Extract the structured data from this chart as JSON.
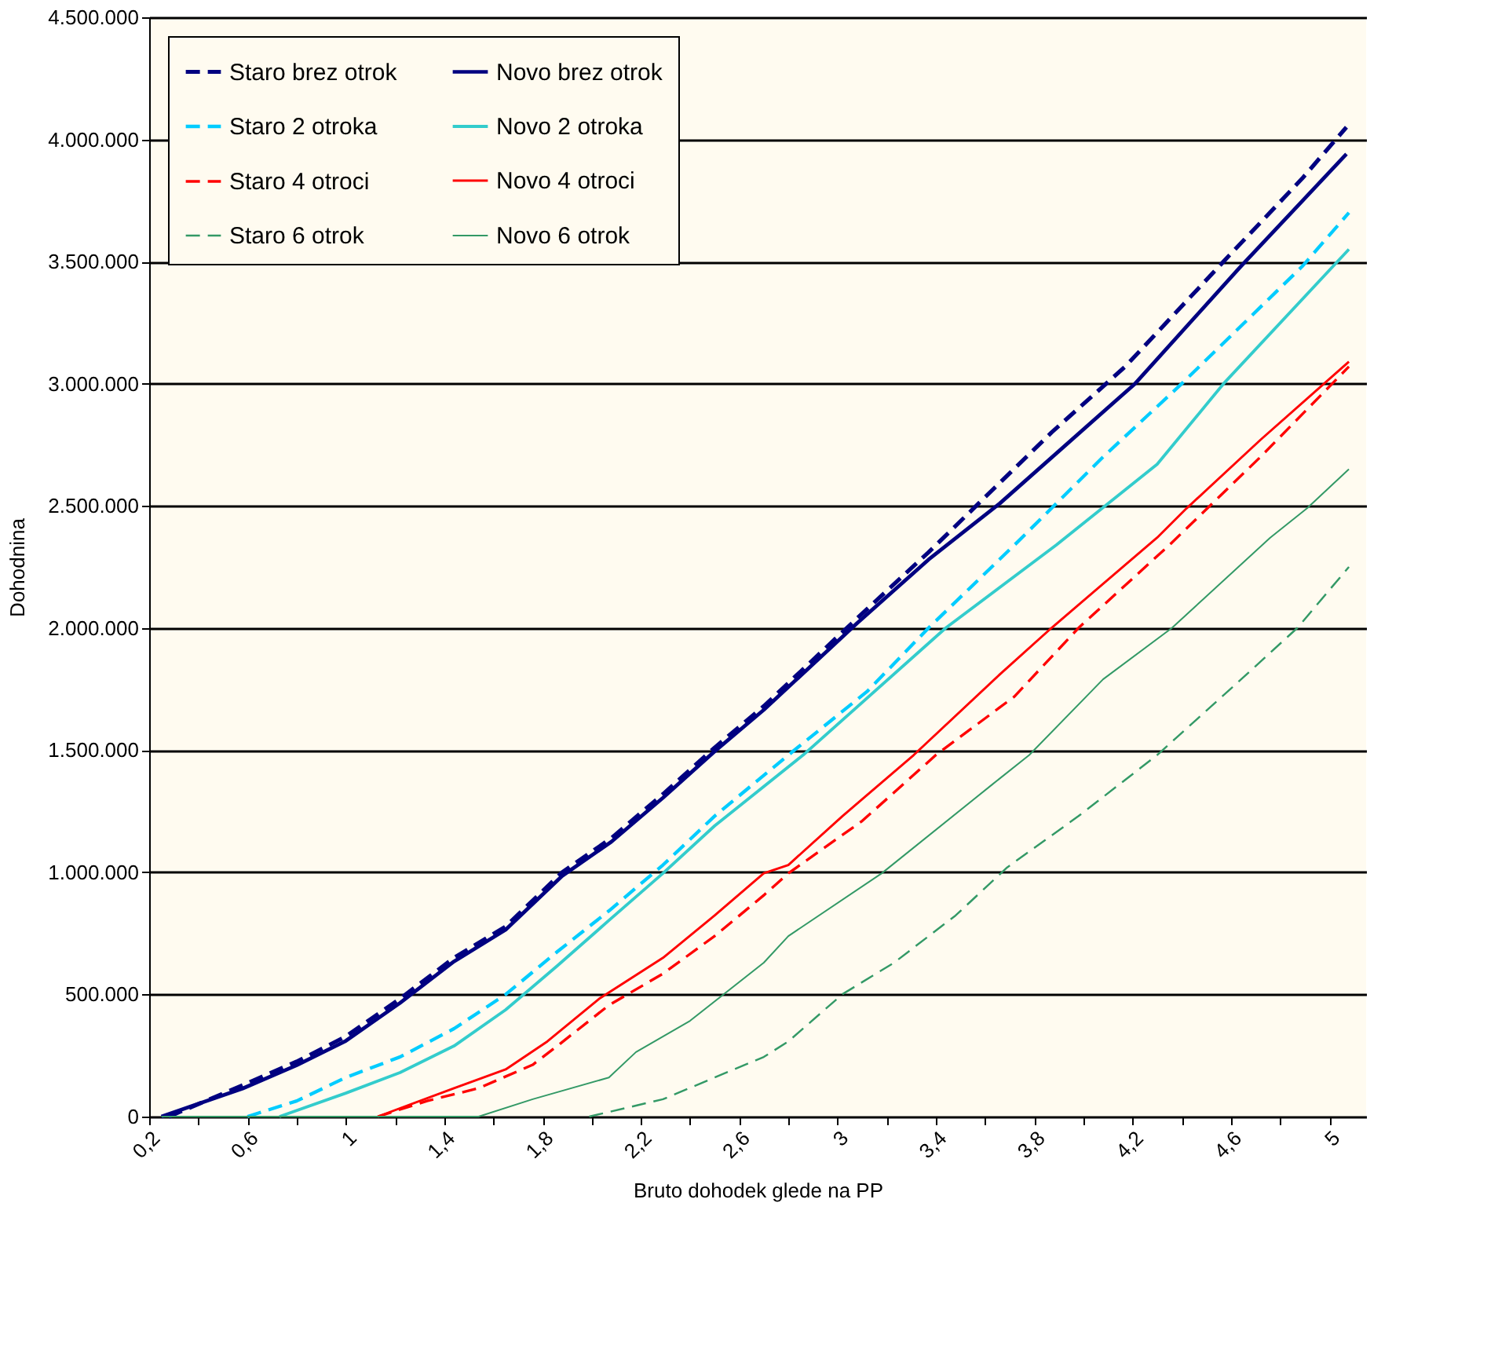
{
  "chart_data": {
    "type": "line",
    "xlabel": "Bruto dohodek glede na PP",
    "ylabel": "Dohodnina",
    "xlim": [
      0.2,
      5.15
    ],
    "ylim": [
      0,
      4500000
    ],
    "xticks": [
      {
        "value": 0.2,
        "label": "0,2"
      },
      {
        "value": 0.4,
        "label": null
      },
      {
        "value": 0.6,
        "label": "0,6"
      },
      {
        "value": 0.8,
        "label": null
      },
      {
        "value": 1,
        "label": "1"
      },
      {
        "value": 1.2,
        "label": null
      },
      {
        "value": 1.4,
        "label": "1,4"
      },
      {
        "value": 1.6,
        "label": null
      },
      {
        "value": 1.8,
        "label": "1,8"
      },
      {
        "value": 2.0,
        "label": null
      },
      {
        "value": 2.2,
        "label": "2,2"
      },
      {
        "value": 2.4,
        "label": null
      },
      {
        "value": 2.6,
        "label": "2,6"
      },
      {
        "value": 2.8,
        "label": null
      },
      {
        "value": 3,
        "label": "3"
      },
      {
        "value": 3.2,
        "label": null
      },
      {
        "value": 3.4,
        "label": "3,4"
      },
      {
        "value": 3.6,
        "label": null
      },
      {
        "value": 3.8,
        "label": "3,8"
      },
      {
        "value": 4.0,
        "label": null
      },
      {
        "value": 4.2,
        "label": "4,2"
      },
      {
        "value": 4.4,
        "label": null
      },
      {
        "value": 4.6,
        "label": "4,6"
      },
      {
        "value": 4.8,
        "label": null
      },
      {
        "value": 5,
        "label": "5"
      }
    ],
    "yticks": [
      0,
      {
        "value": 500000,
        "label": "500.000"
      },
      {
        "value": 1000000,
        "label": "1.000.000"
      },
      {
        "value": 1500000,
        "label": "1.500.000"
      },
      {
        "value": 2000000,
        "label": "2.000.000"
      },
      {
        "value": 2500000,
        "label": "2.500.000"
      },
      {
        "value": 3000000,
        "label": "3.000.000"
      },
      {
        "value": 3500000,
        "label": "3.500.000"
      },
      {
        "value": 4000000,
        "label": "4.000.000"
      },
      {
        "value": 4500000,
        "label": "4.500.000"
      }
    ],
    "grid": "y",
    "legend": "top left",
    "series": [
      {
        "name": "Staro brez otrok",
        "color": "#000080",
        "line_style": "dashed",
        "x": [
          0.28,
          0.58,
          0.8,
          1.0,
          1.22,
          1.44,
          1.65,
          1.88,
          2.08,
          2.29,
          2.5,
          2.7,
          3.08,
          3.37,
          3.87,
          4.17,
          4.57,
          4.89,
          5.07
        ],
        "values": [
          0,
          128000,
          225000,
          328000,
          482000,
          650000,
          778000,
          1000000,
          1140000,
          1320000,
          1510000,
          1680000,
          2040000,
          2310000,
          2800000,
          3070000,
          3500000,
          3840000,
          4050000
        ]
      },
      {
        "name": "Novo brez otrok",
        "color": "#000080",
        "line_style": "solid",
        "x": [
          0.25,
          0.58,
          0.8,
          1.0,
          1.22,
          1.44,
          1.65,
          1.88,
          2.08,
          2.29,
          2.5,
          2.7,
          3.08,
          3.37,
          3.66,
          4.21,
          4.64,
          5.07
        ],
        "values": [
          0,
          115000,
          210000,
          310000,
          465000,
          635000,
          765000,
          985000,
          1125000,
          1305000,
          1495000,
          1665000,
          2020000,
          2280000,
          2510000,
          3000000,
          3480000,
          3940000
        ]
      },
      {
        "name": "Staro 2 otroka",
        "color": "#00ccff",
        "line_style": "dashed",
        "x": [
          0.6,
          0.8,
          1.0,
          1.22,
          1.44,
          1.65,
          1.86,
          2.07,
          2.29,
          2.5,
          2.8,
          3.12,
          3.37,
          3.72,
          4.08,
          4.4,
          4.89,
          5.08
        ],
        "values": [
          0,
          64000,
          160000,
          244000,
          360000,
          500000,
          675000,
          842000,
          1030000,
          1230000,
          1480000,
          1740000,
          2000000,
          2340000,
          2700000,
          3000000,
          3480000,
          3700000
        ]
      },
      {
        "name": "Novo 2 otroka",
        "color": "#33cccc",
        "line_style": "solid",
        "x": [
          0.73,
          1.0,
          1.22,
          1.44,
          1.65,
          1.86,
          2.07,
          2.29,
          2.5,
          2.86,
          3.44,
          3.89,
          4.3,
          4.57,
          5.08
        ],
        "values": [
          0,
          96000,
          180000,
          289000,
          437000,
          617000,
          803000,
          996000,
          1190000,
          1480000,
          2000000,
          2340000,
          2670000,
          3000000,
          3550000
        ]
      },
      {
        "name": "Staro 4 otroci",
        "color": "#ff0000",
        "line_style": "dashed",
        "x": [
          1.13,
          1.33,
          1.54,
          1.76,
          1.86,
          2.07,
          2.29,
          2.5,
          2.7,
          2.8,
          3.1,
          3.4,
          3.72,
          3.98,
          4.35,
          4.72,
          5.08
        ],
        "values": [
          0,
          64000,
          116000,
          212000,
          289000,
          456000,
          585000,
          739000,
          906000,
          996000,
          1210000,
          1480000,
          1720000,
          2000000,
          2340000,
          2700000,
          3070000
        ]
      },
      {
        "name": "Novo 4 otroci",
        "color": "#ff0000",
        "line_style": "solid",
        "x": [
          1.13,
          1.44,
          1.65,
          1.82,
          2.03,
          2.29,
          2.5,
          2.7,
          2.8,
          3.02,
          3.31,
          3.66,
          3.87,
          4.3,
          4.42,
          4.72,
          5.08
        ],
        "values": [
          0,
          116000,
          193000,
          308000,
          482000,
          650000,
          823000,
          996000,
          1030000,
          1230000,
          1480000,
          1810000,
          2000000,
          2370000,
          2490000,
          2770000,
          3090000
        ]
      },
      {
        "name": "Staro 6 otrok",
        "color": "#339966",
        "line_style": "dashed",
        "x": [
          1.99,
          2.29,
          2.5,
          2.7,
          2.8,
          3.02,
          3.23,
          3.48,
          3.69,
          3.98,
          4.3,
          4.62,
          4.87,
          5.08
        ],
        "values": [
          0,
          71000,
          160000,
          244000,
          308000,
          501000,
          630000,
          823000,
          1020000,
          1230000,
          1480000,
          1770000,
          2000000,
          2250000
        ]
      },
      {
        "name": "Novo 6 otrok",
        "color": "#339966",
        "line_style": "solid",
        "x": [
          0.25,
          1.54,
          1.76,
          2.07,
          2.18,
          2.4,
          2.7,
          2.8,
          3.18,
          3.63,
          3.78,
          4.08,
          4.36,
          4.76,
          4.91,
          5.08
        ],
        "values": [
          0,
          0,
          71000,
          160000,
          264000,
          392000,
          630000,
          739000,
          996000,
          1360000,
          1480000,
          1790000,
          2000000,
          2370000,
          2490000,
          2650000
        ]
      }
    ]
  }
}
